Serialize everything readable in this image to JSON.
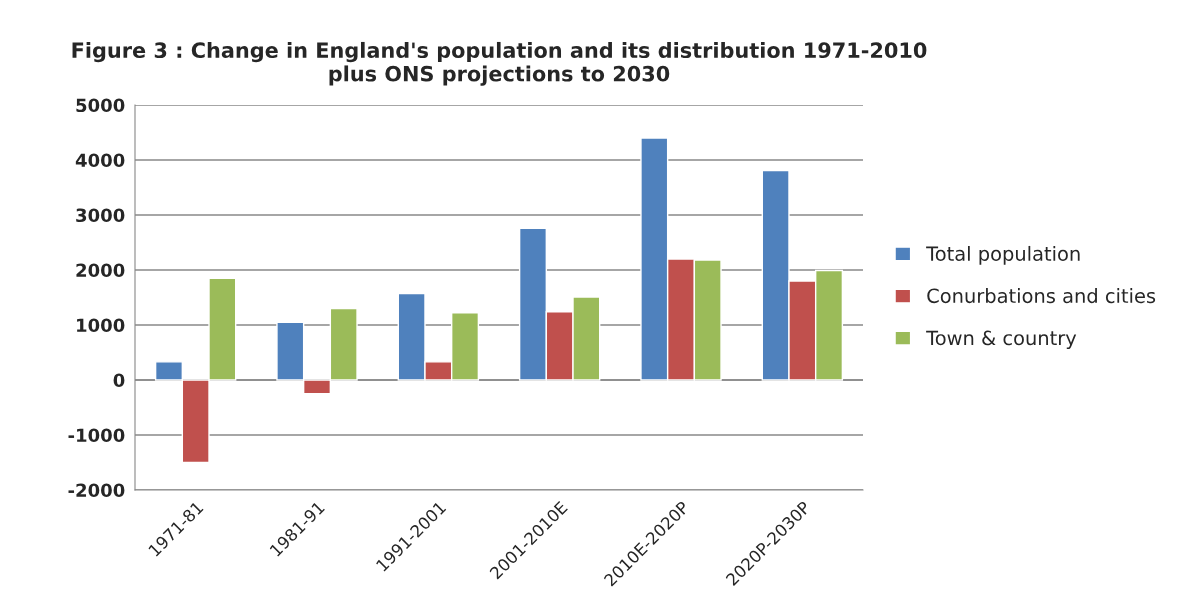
{
  "chart_data": {
    "type": "bar",
    "title": "Figure 3 : Change in England's population and its distribution 1971-2010\nplus ONS projections to 2030",
    "categories": [
      "1971-81",
      "1981-91",
      "1991-2001",
      "2001-2010E",
      "2010E-2020P",
      "2020P-2030P"
    ],
    "series": [
      {
        "name": "Total population",
        "color": "#4f81bd",
        "values": [
          330,
          1050,
          1570,
          2760,
          4400,
          3810
        ]
      },
      {
        "name": "Conurbations and cities",
        "color": "#c0504d",
        "values": [
          -1500,
          -250,
          330,
          1240,
          2200,
          1800
        ]
      },
      {
        "name": "Town & country",
        "color": "#9bbb59",
        "values": [
          1850,
          1300,
          1220,
          1510,
          2180,
          1990
        ]
      }
    ],
    "ylim": [
      -2000,
      5000
    ],
    "yticks": [
      -2000,
      -1000,
      0,
      1000,
      2000,
      3000,
      4000,
      5000
    ],
    "grid": "y",
    "legend": "right"
  }
}
